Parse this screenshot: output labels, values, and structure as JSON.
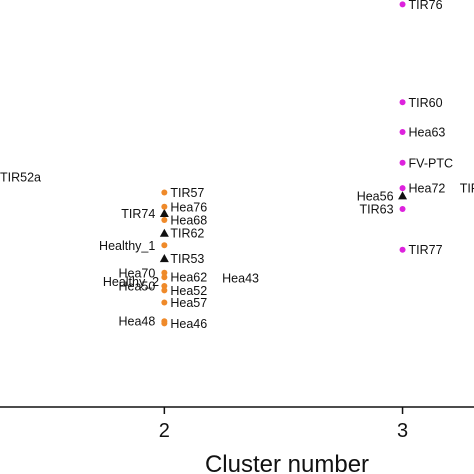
{
  "chart_data": {
    "type": "scatter",
    "xlabel": "Cluster number",
    "ylabel": "",
    "x_ticks": [
      2,
      3
    ],
    "xlim": [
      1.31,
      3.3
    ],
    "ylim": [
      0,
      370
    ],
    "grid": false,
    "colors": {
      "cluster2": "#ef8a2a",
      "cluster3": "#dd22dd",
      "triangle": "#111111"
    },
    "points": [
      {
        "x": 2,
        "y": 195,
        "label": "TIR57",
        "marker": "circle",
        "color": "cluster2",
        "side": "right"
      },
      {
        "x": 2,
        "y": 176,
        "label": "TIR74",
        "marker": "triangle",
        "color": "triangle",
        "side": "left"
      },
      {
        "x": 2,
        "y": 182,
        "label": "Hea76",
        "marker": "circle",
        "color": "cluster2",
        "side": "right"
      },
      {
        "x": 2,
        "y": 170,
        "label": "Hea68",
        "marker": "circle",
        "color": "cluster2",
        "side": "right"
      },
      {
        "x": 2,
        "y": 158,
        "label": "TIR62",
        "marker": "triangle",
        "color": "triangle",
        "side": "right"
      },
      {
        "x": 2,
        "y": 147,
        "label": "Healthy_1",
        "marker": "circle",
        "color": "cluster2",
        "side": "left"
      },
      {
        "x": 2,
        "y": 135,
        "label": "TIR53",
        "marker": "triangle",
        "color": "triangle",
        "side": "right"
      },
      {
        "x": 2,
        "y": 122,
        "label": "Hea70",
        "marker": "circle",
        "color": "cluster2",
        "side": "left"
      },
      {
        "x": 2,
        "y": 118,
        "label": "Hea62",
        "marker": "circle",
        "color": "cluster2",
        "side": "right"
      },
      {
        "x": 2,
        "y": 110,
        "label": "Hea50",
        "marker": "circle",
        "color": "cluster2",
        "side": "left"
      },
      {
        "x": 2,
        "y": 106,
        "label": "Hea52",
        "marker": "circle",
        "color": "cluster2",
        "side": "right"
      },
      {
        "x": 2,
        "y": 95,
        "label": "Hea57",
        "marker": "circle",
        "color": "cluster2",
        "side": "right"
      },
      {
        "x": 2,
        "y": 78,
        "label": "Hea48",
        "marker": "circle",
        "color": "cluster2",
        "side": "left"
      },
      {
        "x": 2,
        "y": 76,
        "label": "Hea46",
        "marker": "circle",
        "color": "cluster2",
        "side": "right"
      },
      {
        "x": 3,
        "y": 366,
        "label": "TIR76",
        "marker": "circle",
        "color": "cluster3",
        "side": "right"
      },
      {
        "x": 3,
        "y": 277,
        "label": "TIR60",
        "marker": "circle",
        "color": "cluster3",
        "side": "right"
      },
      {
        "x": 3,
        "y": 250,
        "label": "Hea63",
        "marker": "circle",
        "color": "cluster3",
        "side": "right"
      },
      {
        "x": 3,
        "y": 222,
        "label": "FV-PTC",
        "marker": "circle",
        "color": "cluster3",
        "side": "right"
      },
      {
        "x": 3,
        "y": 199,
        "label": "Hea72",
        "marker": "circle",
        "color": "cluster3",
        "side": "right"
      },
      {
        "x": 3,
        "y": 192,
        "label": "Hea56",
        "marker": "triangle",
        "color": "triangle",
        "side": "left"
      },
      {
        "x": 3,
        "y": 180,
        "label": "TIR63",
        "marker": "circle",
        "color": "cluster3",
        "side": "left"
      },
      {
        "x": 3,
        "y": 143,
        "label": "TIR77",
        "marker": "circle",
        "color": "cluster3",
        "side": "right"
      }
    ],
    "text_labels": [
      {
        "text": "TIR52a",
        "x": 1.31,
        "y": 205,
        "anchor": "start"
      },
      {
        "text": "Healthy_2",
        "x": 1.86,
        "y": 110,
        "anchor": "middle"
      },
      {
        "text": "Hea43",
        "x": 2.32,
        "y": 113,
        "anchor": "middle"
      },
      {
        "text": "TIF",
        "x": 3.24,
        "y": 195,
        "anchor": "start"
      }
    ]
  }
}
